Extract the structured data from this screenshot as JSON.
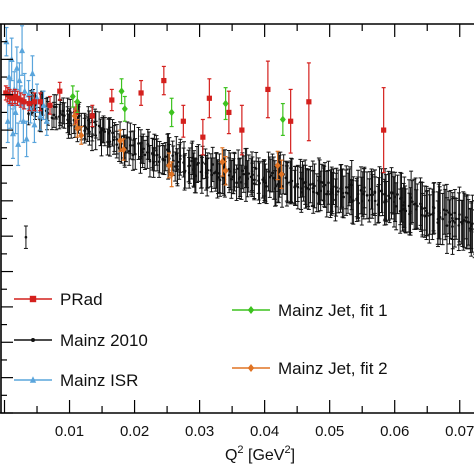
{
  "chart_data": {
    "type": "scatter",
    "xlabel": "Q",
    "xlabel_sup": "2",
    "xlabel_unit": " [GeV",
    "xlabel_unit_sup": "2",
    "xlabel_close": "]",
    "xlim": [
      -0.001,
      0.0725
    ],
    "ylim": [
      0.82,
      1.04
    ],
    "x_tick_labels": [
      "0.01",
      "0.02",
      "0.03",
      "0.04",
      "0.05",
      "0.06",
      "0.07"
    ],
    "x_ticks": [
      0.01,
      0.02,
      0.03,
      0.04,
      0.05,
      0.06,
      0.07
    ],
    "y_ticks": [
      0.82,
      0.84,
      0.86,
      0.88,
      0.9,
      0.92,
      0.94,
      0.96,
      0.98,
      1.0,
      1.02
    ],
    "grid": false,
    "legend": [
      {
        "name": "PRad",
        "color": "#d4201d",
        "marker": "square"
      },
      {
        "name": "Mainz 2010",
        "color": "#111111",
        "marker": "dot"
      },
      {
        "name": "Mainz ISR",
        "color": "#5aa5dc",
        "marker": "triangle"
      },
      {
        "name": "Mainz Jet, fit 1",
        "color": "#3dc21f",
        "marker": "diamond"
      },
      {
        "name": "Mainz Jet, fit 2",
        "color": "#e07323",
        "marker": "diamond"
      }
    ],
    "series": [
      {
        "name": "PRad",
        "color": "#d4201d",
        "marker": "square",
        "points": [
          [
            0.0002,
            1.001,
            0.004
          ],
          [
            0.0005,
            1.0,
            0.004
          ],
          [
            0.0008,
            0.999,
            0.004
          ],
          [
            0.0012,
            0.998,
            0.004
          ],
          [
            0.0016,
            0.999,
            0.004
          ],
          [
            0.002,
            0.998,
            0.004
          ],
          [
            0.0025,
            0.997,
            0.004
          ],
          [
            0.003,
            0.996,
            0.004
          ],
          [
            0.0038,
            0.995,
            0.004
          ],
          [
            0.0046,
            0.996,
            0.005
          ],
          [
            0.0055,
            0.996,
            0.005
          ],
          [
            0.007,
            0.994,
            0.005
          ],
          [
            0.0085,
            1.002,
            0.005
          ],
          [
            0.011,
            0.99,
            0.006
          ],
          [
            0.0135,
            0.988,
            0.006
          ],
          [
            0.0165,
            0.997,
            0.006
          ],
          [
            0.021,
            1.001,
            0.007
          ],
          [
            0.0245,
            1.008,
            0.008
          ],
          [
            0.0275,
            0.985,
            0.009
          ],
          [
            0.0305,
            0.976,
            0.01
          ],
          [
            0.0315,
            0.998,
            0.011
          ],
          [
            0.0345,
            0.99,
            0.012
          ],
          [
            0.0365,
            0.98,
            0.014
          ],
          [
            0.0405,
            1.003,
            0.016
          ],
          [
            0.044,
            0.985,
            0.018
          ],
          [
            0.0468,
            0.996,
            0.022
          ],
          [
            0.0583,
            0.98,
            0.024
          ]
        ]
      },
      {
        "name": "Mainz 2010",
        "color": "#111111",
        "marker": "dot",
        "generated": true,
        "range": [
          0.0035,
          0.0724
        ],
        "count": 390,
        "trend": [
          [
            0.0035,
            0.993
          ],
          [
            0.01,
            0.986
          ],
          [
            0.02,
            0.97
          ],
          [
            0.03,
            0.958
          ],
          [
            0.04,
            0.953
          ],
          [
            0.05,
            0.946
          ],
          [
            0.06,
            0.94
          ],
          [
            0.07,
            0.928
          ],
          [
            0.0724,
            0.924
          ]
        ],
        "scatter": 0.005,
        "err": [
          0.006,
          0.015
        ]
      },
      {
        "name": "Mainz ISR",
        "color": "#5aa5dc",
        "marker": "triangle",
        "points": [
          [
            0.0003,
            1.03,
            0.008
          ],
          [
            0.0005,
            0.985,
            0.012
          ],
          [
            0.0007,
            1.01,
            0.01
          ],
          [
            0.0009,
            0.995,
            0.014
          ],
          [
            0.0011,
            1.02,
            0.012
          ],
          [
            0.0013,
            0.978,
            0.014
          ],
          [
            0.0015,
            1.003,
            0.01
          ],
          [
            0.0017,
            0.99,
            0.012
          ],
          [
            0.0019,
            1.015,
            0.012
          ],
          [
            0.0021,
            0.972,
            0.012
          ],
          [
            0.0023,
            1.008,
            0.01
          ],
          [
            0.0025,
            0.995,
            0.01
          ],
          [
            0.0027,
            1.025,
            0.014
          ],
          [
            0.0029,
            0.985,
            0.012
          ],
          [
            0.0031,
            1.002,
            0.01
          ],
          [
            0.0034,
            0.975,
            0.01
          ],
          [
            0.0037,
            1.0,
            0.008
          ],
          [
            0.004,
            0.992,
            0.008
          ],
          [
            0.0043,
            1.012,
            0.01
          ],
          [
            0.0046,
            0.983,
            0.01
          ],
          [
            0.005,
            0.998,
            0.008
          ],
          [
            0.0055,
            0.988,
            0.008
          ],
          [
            0.006,
            0.994,
            0.008
          ],
          [
            0.0065,
            0.985,
            0.008
          ]
        ]
      },
      {
        "name": "Mainz Jet, fit 1",
        "color": "#3dc21f",
        "marker": "diamond",
        "points": [
          [
            0.0105,
            0.999,
            0.006
          ],
          [
            0.0112,
            0.996,
            0.006
          ],
          [
            0.018,
            1.002,
            0.007
          ],
          [
            0.0185,
            0.992,
            0.007
          ],
          [
            0.0257,
            0.99,
            0.008
          ],
          [
            0.034,
            0.995,
            0.009
          ],
          [
            0.0428,
            0.986,
            0.009
          ]
        ]
      },
      {
        "name": "Mainz Jet, fit 2",
        "color": "#e07323",
        "marker": "diamond",
        "points": [
          [
            0.0108,
            0.988,
            0.005
          ],
          [
            0.0112,
            0.981,
            0.005
          ],
          [
            0.0118,
            0.977,
            0.005
          ],
          [
            0.0178,
            0.974,
            0.006
          ],
          [
            0.0183,
            0.969,
            0.006
          ],
          [
            0.0253,
            0.96,
            0.007
          ],
          [
            0.0257,
            0.955,
            0.007
          ],
          [
            0.0335,
            0.962,
            0.008
          ],
          [
            0.034,
            0.957,
            0.008
          ],
          [
            0.042,
            0.96,
            0.008
          ],
          [
            0.0426,
            0.955,
            0.008
          ]
        ]
      }
    ]
  }
}
